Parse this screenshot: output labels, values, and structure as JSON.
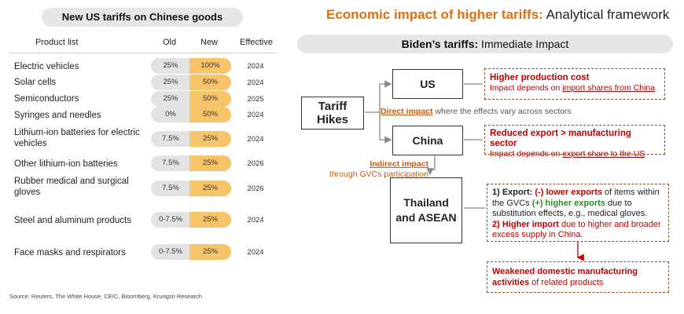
{
  "left": {
    "title": "New US tariffs on Chinese goods",
    "headers": {
      "product": "Product list",
      "old": "Old",
      "new": "New",
      "effective": "Effective"
    },
    "rows": [
      {
        "product": "Electric vehicles",
        "old": "25%",
        "new": "100%",
        "effective": "2024"
      },
      {
        "product": "Solar cells",
        "old": "25%",
        "new": "50%",
        "effective": "2024"
      },
      {
        "product": "Semiconductors",
        "old": "25%",
        "new": "50%",
        "effective": "2025"
      },
      {
        "product": "Syringes and needles",
        "old": "0%",
        "new": "50%",
        "effective": "2024"
      },
      {
        "product": "Lithium-ion batteries for electric vehicles",
        "old": "7.5%",
        "new": "25%",
        "effective": "2024"
      },
      {
        "product": "Other lithium-ion batteries",
        "old": "7.5%",
        "new": "25%",
        "effective": "2026"
      },
      {
        "product": "Rubber medical and surgical gloves",
        "old": "7.5%",
        "new": "25%",
        "effective": "2026"
      },
      {
        "product": "Steel and aluminum products",
        "old": "0-7.5%",
        "new": "25%",
        "effective": "2024"
      },
      {
        "product": "Face masks and respirators",
        "old": "0-7.5%",
        "new": "25%",
        "effective": "2024"
      }
    ],
    "source": "Source: Reuters, The White House, CEIC, Bloomberg, Krungsri Research"
  },
  "right": {
    "title_bold": "Economic impact of higher tariffs:",
    "title_rest": " Analytical framework",
    "subtitle_bold": "Biden’s tariffs:",
    "subtitle_rest": " Immediate Impact",
    "tariff_box": "Tariff Hikes",
    "us_box": "US",
    "china_box": "China",
    "asean_box": "Thailand and ASEAN",
    "direct_impact_link": "Direct impact",
    "direct_impact_rest": " where the effects vary across sectors",
    "indirect_impact_link": "Indirect impact",
    "indirect_impact_rest": "through GVCs participation",
    "us_note": {
      "head": "Higher production cost",
      "pre": "Impact depends on ",
      "link": "import shares from China"
    },
    "china_note": {
      "head": "Reduced export > manufacturing sector",
      "pre": "Impact depends on ",
      "link": "export share to the US"
    },
    "asean_note": {
      "p1_label": "1) Export: ",
      "p1_neg": "(-) lower exports",
      "p1_mid": " of items within the GVCs ",
      "p1_pos": "(+) higher exports",
      "p1_end": " due to substitution effects, e.g., medical gloves.",
      "p2_label": "2) Higher import",
      "p2_end": " due to higher and broader excess supply in China."
    },
    "result_note": {
      "head": "Weakened domestic manufacturing activities",
      "end": " of related products"
    }
  },
  "colors": {
    "accent_orange": "#e46c0a",
    "bar_new": "#f7c46a",
    "bar_old": "#e3e3e3",
    "red": "#c00000",
    "green": "#2e8b2e"
  }
}
